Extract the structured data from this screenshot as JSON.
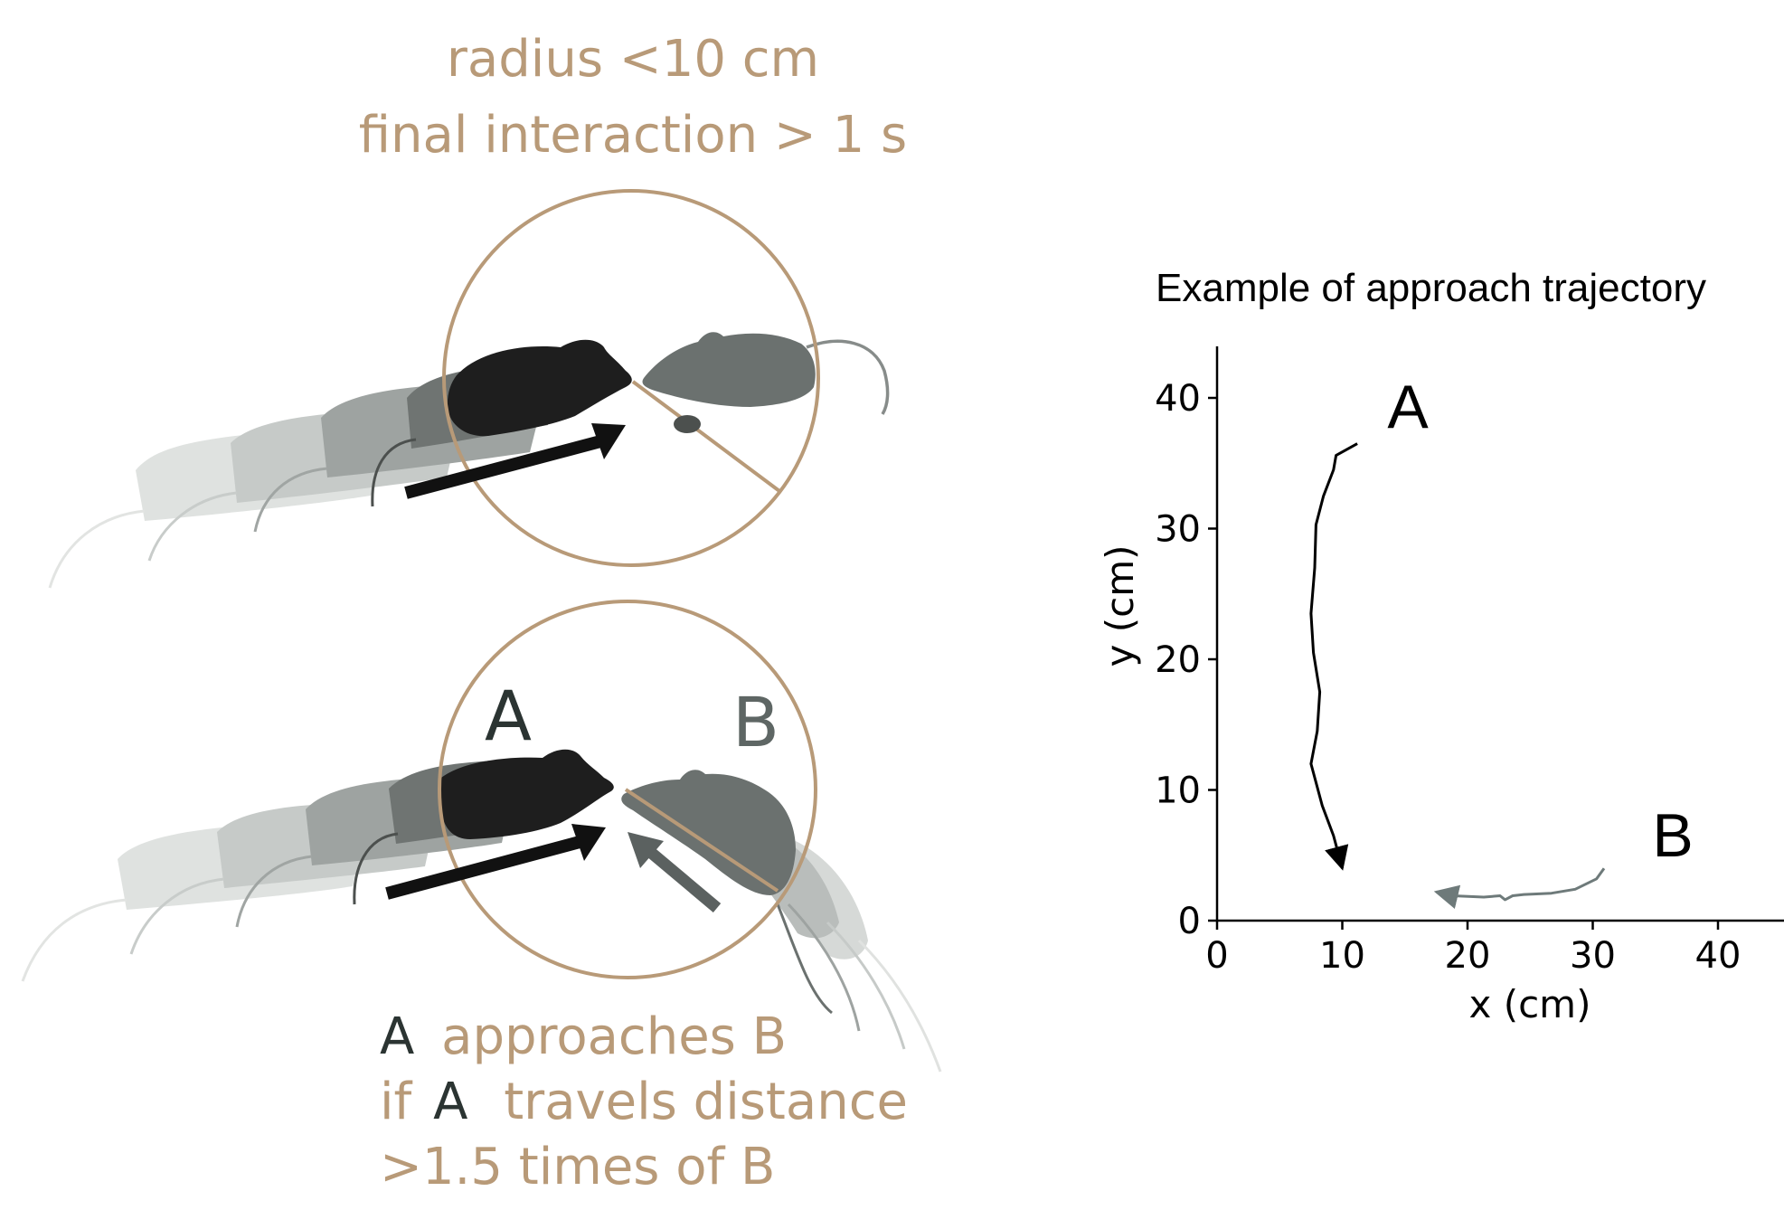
{
  "criteria": {
    "line1": "radius <10 cm",
    "line2": "final interaction > 1 s"
  },
  "diagram": {
    "label_a": "A",
    "label_b": "B",
    "rule_line1_a": "A",
    "rule_line1_rest": "approaches B",
    "rule_line2_if": "if",
    "rule_line2_a": "A",
    "rule_line2_rest": "travels distance",
    "rule_line3": ">1.5 times of B"
  },
  "colors": {
    "accent_tan": "#b89a78",
    "mouse_a": "#1e1e1e",
    "mouse_b": "#6b716f",
    "trajectory_a": "#000000",
    "trajectory_b": "#6e7a7a"
  },
  "chart_data": {
    "type": "line",
    "title": "Example of approach trajectory",
    "xlabel": "x (cm)",
    "ylabel": "y (cm)",
    "xlim": [
      0,
      45
    ],
    "ylim": [
      0,
      44
    ],
    "xticks": [
      0,
      10,
      20,
      30,
      40
    ],
    "yticks": [
      0,
      10,
      20,
      30,
      40
    ],
    "series": [
      {
        "label": "A",
        "points": [
          [
            11.2,
            36.5
          ],
          [
            9.5,
            35.6
          ],
          [
            9.3,
            34.5
          ],
          [
            8.5,
            32.5
          ],
          [
            7.9,
            30.3
          ],
          [
            7.8,
            27.0
          ],
          [
            7.5,
            23.5
          ],
          [
            7.7,
            20.5
          ],
          [
            8.2,
            17.5
          ],
          [
            8.0,
            14.5
          ],
          [
            7.5,
            12.0
          ],
          [
            8.4,
            8.8
          ],
          [
            9.3,
            6.5
          ],
          [
            10.0,
            4.0
          ]
        ]
      },
      {
        "label": "B",
        "points": [
          [
            30.9,
            4.0
          ],
          [
            30.3,
            3.2
          ],
          [
            28.6,
            2.4
          ],
          [
            26.7,
            2.1
          ],
          [
            24.5,
            2.0
          ],
          [
            23.6,
            1.9
          ],
          [
            23.0,
            1.6
          ],
          [
            22.6,
            1.9
          ],
          [
            21.3,
            1.8
          ],
          [
            18.8,
            1.9
          ],
          [
            17.5,
            2.2
          ]
        ]
      }
    ]
  }
}
